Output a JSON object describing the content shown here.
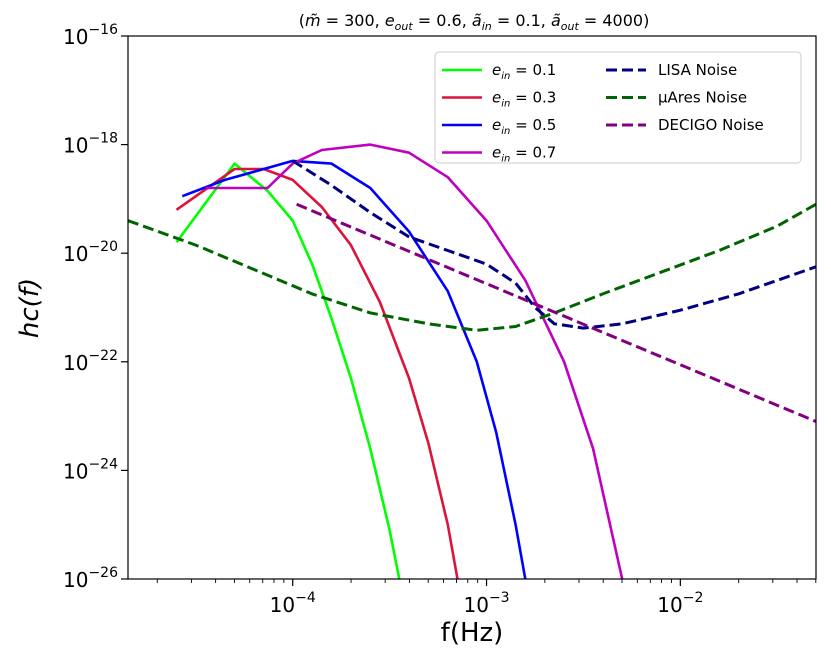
{
  "chart_data": {
    "type": "line",
    "title": "(m̃ = 300, e_out = 0.6, ã_in = 0.1, ã_out = 4000)",
    "title_parts": {
      "open": "(",
      "m": "m̃",
      "m_val": " = 300, ",
      "eout": "e",
      "eout_sub": "out",
      "eout_val": " = 0.6, ",
      "ain": "ã",
      "ain_sub": "in",
      "ain_val": " = 0.1, ",
      "aout": "ã",
      "aout_sub": "out",
      "aout_val": " = 4000)"
    },
    "xlabel": "f(Hz)",
    "ylabel": "hc(f)",
    "xscale": "log",
    "yscale": "log",
    "xlim_log10": [
      -4.85,
      -1.3
    ],
    "ylim_log10": [
      -26,
      -16
    ],
    "xticks": [
      {
        "exp": -4,
        "base": "10",
        "sup": "−4"
      },
      {
        "exp": -3,
        "base": "10",
        "sup": "−3"
      },
      {
        "exp": -2,
        "base": "10",
        "sup": "−2"
      }
    ],
    "yticks": [
      {
        "exp": -26,
        "base": "10",
        "sup": "−26"
      },
      {
        "exp": -24,
        "base": "10",
        "sup": "−24"
      },
      {
        "exp": -22,
        "base": "10",
        "sup": "−22"
      },
      {
        "exp": -20,
        "base": "10",
        "sup": "−20"
      },
      {
        "exp": -18,
        "base": "10",
        "sup": "−18"
      },
      {
        "exp": -16,
        "base": "10",
        "sup": "−16"
      }
    ],
    "grid": false,
    "legend_position": "top-right",
    "series": [
      {
        "name": "e_in = 0.1",
        "label_main": "e",
        "label_sub": "in",
        "label_val": " = 0.1",
        "color": "#00ff00",
        "dash": "solid",
        "points": [
          [
            -4.6,
            -19.8
          ],
          [
            -4.3,
            -18.35
          ],
          [
            -4.13,
            -18.85
          ],
          [
            -4.0,
            -19.4
          ],
          [
            -3.9,
            -20.2
          ],
          [
            -3.8,
            -21.2
          ],
          [
            -3.7,
            -22.3
          ],
          [
            -3.6,
            -23.6
          ],
          [
            -3.5,
            -25.1
          ],
          [
            -3.45,
            -26.0
          ]
        ]
      },
      {
        "name": "e_in = 0.3",
        "label_main": "e",
        "label_sub": "in",
        "label_val": " = 0.3",
        "color": "#dc143c",
        "dash": "solid",
        "points": [
          [
            -4.6,
            -19.2
          ],
          [
            -4.3,
            -18.45
          ],
          [
            -4.15,
            -18.45
          ],
          [
            -4.0,
            -18.65
          ],
          [
            -3.85,
            -19.15
          ],
          [
            -3.7,
            -19.85
          ],
          [
            -3.55,
            -20.9
          ],
          [
            -3.4,
            -22.3
          ],
          [
            -3.3,
            -23.5
          ],
          [
            -3.2,
            -25.0
          ],
          [
            -3.15,
            -26.0
          ]
        ]
      },
      {
        "name": "e_in = 0.5",
        "label_main": "e",
        "label_sub": "in",
        "label_val": " = 0.5",
        "color": "#0000ff",
        "dash": "solid",
        "points": [
          [
            -4.57,
            -18.95
          ],
          [
            -4.35,
            -18.65
          ],
          [
            -4.0,
            -18.3
          ],
          [
            -3.8,
            -18.35
          ],
          [
            -3.6,
            -18.8
          ],
          [
            -3.4,
            -19.6
          ],
          [
            -3.2,
            -20.7
          ],
          [
            -3.05,
            -22.0
          ],
          [
            -2.95,
            -23.3
          ],
          [
            -2.85,
            -25.0
          ],
          [
            -2.8,
            -26.0
          ]
        ]
      },
      {
        "name": "e_in = 0.7",
        "label_main": "e",
        "label_sub": "in",
        "label_val": " = 0.7",
        "color": "#bf00bf",
        "dash": "solid",
        "points": [
          [
            -4.45,
            -18.8
          ],
          [
            -4.13,
            -18.8
          ],
          [
            -4.0,
            -18.35
          ],
          [
            -3.85,
            -18.1
          ],
          [
            -3.6,
            -18.0
          ],
          [
            -3.4,
            -18.15
          ],
          [
            -3.2,
            -18.6
          ],
          [
            -3.0,
            -19.4
          ],
          [
            -2.8,
            -20.5
          ],
          [
            -2.6,
            -22.0
          ],
          [
            -2.45,
            -23.6
          ],
          [
            -2.35,
            -25.2
          ],
          [
            -2.3,
            -26.0
          ]
        ]
      },
      {
        "name": "LISA Noise",
        "label_main": "LISA Noise",
        "label_sub": "",
        "label_val": "",
        "color": "#000080",
        "dash": "dashed",
        "points": [
          [
            -4.0,
            -18.3
          ],
          [
            -3.8,
            -18.75
          ],
          [
            -3.6,
            -19.25
          ],
          [
            -3.4,
            -19.7
          ],
          [
            -3.2,
            -19.95
          ],
          [
            -3.0,
            -20.2
          ],
          [
            -2.85,
            -20.55
          ],
          [
            -2.75,
            -21.0
          ],
          [
            -2.65,
            -21.3
          ],
          [
            -2.5,
            -21.38
          ],
          [
            -2.3,
            -21.3
          ],
          [
            -2.0,
            -21.05
          ],
          [
            -1.7,
            -20.75
          ],
          [
            -1.3,
            -20.25
          ]
        ]
      },
      {
        "name": "μAres Noise",
        "label_main": "μAres Noise",
        "label_sub": "",
        "label_val": "",
        "color": "#006400",
        "dash": "dashed",
        "points": [
          [
            -4.85,
            -19.4
          ],
          [
            -4.5,
            -19.85
          ],
          [
            -4.2,
            -20.3
          ],
          [
            -3.9,
            -20.75
          ],
          [
            -3.6,
            -21.1
          ],
          [
            -3.3,
            -21.3
          ],
          [
            -3.05,
            -21.42
          ],
          [
            -2.85,
            -21.35
          ],
          [
            -2.65,
            -21.1
          ],
          [
            -2.4,
            -20.75
          ],
          [
            -2.1,
            -20.35
          ],
          [
            -1.8,
            -19.95
          ],
          [
            -1.5,
            -19.5
          ],
          [
            -1.3,
            -19.1
          ]
        ]
      },
      {
        "name": "DECIGO Noise",
        "label_main": "DECIGO Noise",
        "label_sub": "",
        "label_val": "",
        "color": "#800080",
        "dash": "dashed",
        "points": [
          [
            -3.98,
            -19.1
          ],
          [
            -1.3,
            -23.1
          ]
        ]
      }
    ]
  }
}
